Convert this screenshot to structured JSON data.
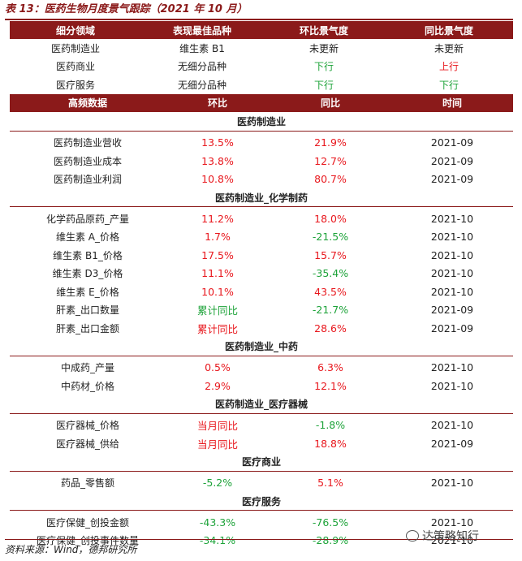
{
  "title": "表 13：医药生物月度景气跟踪（2021 年 10 月）",
  "header1": [
    "细分领域",
    "表现最佳品种",
    "环比景气度",
    "同比景气度"
  ],
  "top_rows": [
    {
      "c0": "医药制造业",
      "c1": "维生素 B1",
      "c2": "未更新",
      "c3": "未更新",
      "s2": "",
      "s3": ""
    },
    {
      "c0": "医药商业",
      "c1": "无细分品种",
      "c2": "下行",
      "c3": "上行",
      "s2": "green",
      "s3": "red"
    },
    {
      "c0": "医疗服务",
      "c1": "无细分品种",
      "c2": "下行",
      "c3": "下行",
      "s2": "green",
      "s3": "green"
    }
  ],
  "header2": [
    "高频数据",
    "环比",
    "同比",
    "时间"
  ],
  "sections": [
    {
      "title": "医药制造业",
      "rows": [
        {
          "name": "医药制造业营收",
          "mom": "13.5%",
          "yoy": "21.9%",
          "time": "2021-09",
          "sm": "red",
          "sy": "red"
        },
        {
          "name": "医药制造业成本",
          "mom": "13.8%",
          "yoy": "12.7%",
          "time": "2021-09",
          "sm": "red",
          "sy": "red"
        },
        {
          "name": "医药制造业利润",
          "mom": "10.8%",
          "yoy": "80.7%",
          "time": "2021-09",
          "sm": "red",
          "sy": "red"
        }
      ]
    },
    {
      "title": "医药制造业_化学制药",
      "rows": [
        {
          "name": "化学药品原药_产量",
          "mom": "11.2%",
          "yoy": "18.0%",
          "time": "2021-10",
          "sm": "red",
          "sy": "red"
        },
        {
          "name": "维生素 A_价格",
          "mom": "1.7%",
          "yoy": "-21.5%",
          "time": "2021-10",
          "sm": "red",
          "sy": "green"
        },
        {
          "name": "维生素 B1_价格",
          "mom": "17.5%",
          "yoy": "15.7%",
          "time": "2021-10",
          "sm": "red",
          "sy": "red"
        },
        {
          "name": "维生素 D3_价格",
          "mom": "11.1%",
          "yoy": "-35.4%",
          "time": "2021-10",
          "sm": "red",
          "sy": "green"
        },
        {
          "name": "维生素 E_价格",
          "mom": "10.1%",
          "yoy": "43.5%",
          "time": "2021-10",
          "sm": "red",
          "sy": "red"
        },
        {
          "name": "肝素_出口数量",
          "mom": "累计同比",
          "yoy": "-21.7%",
          "time": "2021-09",
          "sm": "green",
          "sy": "green"
        },
        {
          "name": "肝素_出口金额",
          "mom": "累计同比",
          "yoy": "28.6%",
          "time": "2021-09",
          "sm": "red",
          "sy": "red"
        }
      ]
    },
    {
      "title": "医药制造业_中药",
      "rows": [
        {
          "name": "中成药_产量",
          "mom": "0.5%",
          "yoy": "6.3%",
          "time": "2021-10",
          "sm": "red",
          "sy": "red"
        },
        {
          "name": "中药材_价格",
          "mom": "2.9%",
          "yoy": "12.1%",
          "time": "2021-10",
          "sm": "red",
          "sy": "red"
        }
      ]
    },
    {
      "title": "医药制造业_医疗器械",
      "rows": [
        {
          "name": "医疗器械_价格",
          "mom": "当月同比",
          "yoy": "-1.8%",
          "time": "2021-10",
          "sm": "red",
          "sy": "green"
        },
        {
          "name": "医疗器械_供给",
          "mom": "当月同比",
          "yoy": "18.8%",
          "time": "2021-09",
          "sm": "red",
          "sy": "red"
        }
      ]
    },
    {
      "title": "医疗商业",
      "rows": [
        {
          "name": "药品_零售额",
          "mom": "-5.2%",
          "yoy": "5.1%",
          "time": "2021-10",
          "sm": "green",
          "sy": "red"
        }
      ]
    },
    {
      "title": "医疗服务",
      "rows": [
        {
          "name": "医疗保健_创投金额",
          "mom": "-43.3%",
          "yoy": "-76.5%",
          "time": "2021-10",
          "sm": "green",
          "sy": "green"
        },
        {
          "name": "医疗保健_创投事件数量",
          "mom": "-34.1%",
          "yoy": "-28.9%",
          "time": "2021-10",
          "sm": "green",
          "sy": "green"
        }
      ]
    }
  ],
  "footer": "资料来源：Wind，德邦研究所",
  "watermark": "达策略知行",
  "colors": {
    "header_bg": "#8b1a1a",
    "red": "#e8171d",
    "green": "#1ea33a"
  },
  "icons": {
    "watermark": "wechat-icon"
  }
}
